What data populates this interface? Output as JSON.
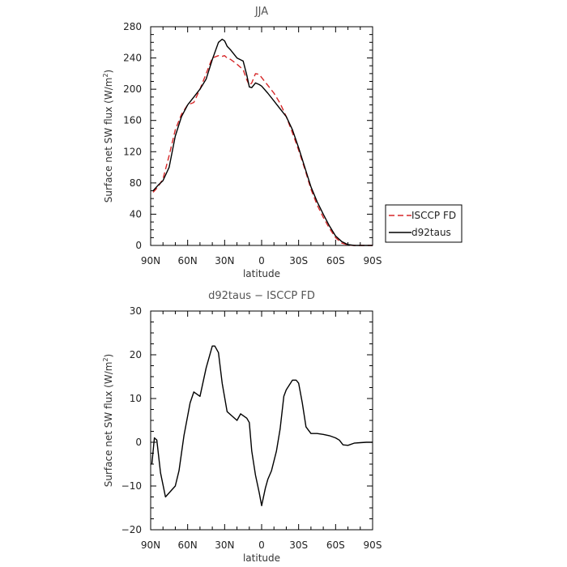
{
  "chart_data": [
    {
      "type": "line",
      "title": "JJA",
      "xlabel": "latitude",
      "ylabel": "Surface net SW flux (W/m",
      "ylabel_sup": "2",
      "ylabel_tail": ")",
      "xlim": [
        90,
        -90
      ],
      "ylim": [
        0,
        280
      ],
      "x_ticks": [
        90,
        60,
        30,
        0,
        -30,
        -60,
        -90
      ],
      "x_tick_labels": [
        "90N",
        "60N",
        "30N",
        "0",
        "30S",
        "60S",
        "90S"
      ],
      "y_ticks": [
        0,
        40,
        80,
        120,
        160,
        200,
        240,
        280
      ],
      "y_tick_labels": [
        "0",
        "40",
        "80",
        "120",
        "160",
        "200",
        "240",
        "280"
      ],
      "grid": false,
      "legend_position": "outside-right",
      "x": [
        88,
        84,
        80,
        75,
        70,
        65,
        60,
        55,
        50,
        45,
        40,
        35,
        32,
        30,
        28,
        25,
        20,
        15,
        12,
        10,
        8,
        5,
        2,
        0,
        -5,
        -10,
        -15,
        -20,
        -25,
        -30,
        -35,
        -40,
        -45,
        -50,
        -55,
        -60,
        -65,
        -70,
        -75,
        -80,
        -85,
        -90
      ],
      "series": [
        {
          "name": "ISCCP FD",
          "color": "#d62728",
          "dash": "dashed",
          "values": [
            68,
            75,
            85,
            115,
            148,
            168,
            180,
            183,
            200,
            220,
            240,
            243,
            242,
            243,
            240,
            238,
            232,
            225,
            212,
            205,
            208,
            220,
            219,
            215,
            205,
            195,
            182,
            165,
            144,
            122,
            98,
            72,
            52,
            36,
            22,
            10,
            3,
            0.5,
            0,
            0,
            0,
            0
          ]
        },
        {
          "name": "d92taus",
          "color": "#000000",
          "dash": "solid",
          "values": [
            70,
            77,
            83,
            100,
            140,
            165,
            180,
            190,
            200,
            213,
            238,
            260,
            264,
            262,
            255,
            250,
            240,
            236,
            218,
            203,
            202,
            208,
            206,
            204,
            195,
            185,
            175,
            165,
            148,
            125,
            100,
            75,
            56,
            40,
            25,
            12,
            5,
            1,
            0,
            0,
            0,
            0
          ]
        }
      ]
    },
    {
      "type": "line",
      "title": "d92taus − ISCCP FD",
      "xlabel": "latitude",
      "ylabel": "Surface net SW flux (W/m",
      "ylabel_sup": "2",
      "ylabel_tail": ")",
      "xlim": [
        90,
        -90
      ],
      "ylim": [
        -20,
        30
      ],
      "x_ticks": [
        90,
        60,
        30,
        0,
        -30,
        -60,
        -90
      ],
      "x_tick_labels": [
        "90N",
        "60N",
        "30N",
        "0",
        "30S",
        "60S",
        "90S"
      ],
      "y_ticks": [
        -20,
        -10,
        0,
        10,
        20,
        30
      ],
      "y_tick_labels": [
        "−20",
        "−10",
        "0",
        "10",
        "20",
        "30"
      ],
      "grid": false,
      "x": [
        89,
        87,
        85,
        82,
        78,
        70,
        67,
        63,
        58,
        55,
        50,
        45,
        40,
        38,
        35,
        32,
        28,
        24,
        20,
        17,
        12,
        10,
        8,
        5,
        2,
        0,
        -3,
        -5,
        -8,
        -12,
        -15,
        -18,
        -20,
        -25,
        -28,
        -30,
        -33,
        -36,
        -40,
        -45,
        -50,
        -55,
        -60,
        -63,
        -66,
        -70,
        -75,
        -80,
        -85,
        -88,
        -90
      ],
      "series": [
        {
          "name": "",
          "color": "#000000",
          "dash": "solid",
          "values": [
            -5,
            1,
            0.5,
            -7,
            -12.5,
            -10,
            -6.5,
            1.5,
            9,
            11.5,
            10.5,
            17,
            22,
            22,
            20.5,
            13.5,
            7,
            6,
            5,
            6.5,
            5.5,
            4.5,
            -2,
            -7.5,
            -11.5,
            -14.5,
            -10.5,
            -8.5,
            -6.5,
            -2,
            3,
            10.5,
            12,
            14.2,
            14.2,
            13.5,
            9,
            3.5,
            2,
            2,
            1.8,
            1.5,
            1,
            0.5,
            -0.6,
            -0.7,
            -0.2,
            -0.1,
            0,
            0,
            0
          ]
        }
      ]
    }
  ]
}
